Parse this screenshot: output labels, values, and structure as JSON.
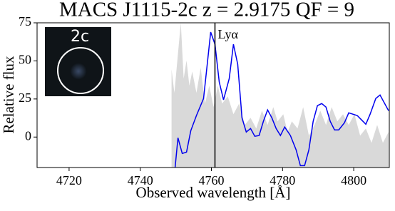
{
  "chart_data": {
    "type": "line",
    "title": "MACS J1115-2c z = 2.9175 QF = 9",
    "xlabel": "Observed wavelength [Å]",
    "ylabel": "Relative flux",
    "xlim": [
      4711,
      4810
    ],
    "ylim": [
      -20,
      75
    ],
    "xticks": [
      4720,
      4740,
      4760,
      4780,
      4800
    ],
    "yticks": [
      0,
      25,
      50,
      75
    ],
    "inset_label": "2c",
    "annotation": {
      "text": "Lyα",
      "x": 4761,
      "color": "#000000"
    },
    "series": [
      {
        "color": "#d9d9d9",
        "fill": true,
        "x": [
          4748.8,
          4749.6,
          4750.6,
          4751.4,
          4752.2,
          4753,
          4753.8,
          4754.6,
          4755.8,
          4757,
          4758.2,
          4759.4,
          4760.6,
          4761.8,
          4763,
          4764.6,
          4766.2,
          4767.8,
          4769.4,
          4771,
          4772.6,
          4774.2,
          4775.8,
          4777.4,
          4778.6,
          4780.2,
          4781.4,
          4782.6,
          4784.2,
          4785.8,
          4787.4,
          4789,
          4790.6,
          4792.2,
          4793.8,
          4795.4,
          4797,
          4798.6,
          4800.2,
          4801.8,
          4803.4,
          4805,
          4806.6,
          4808.2,
          4809.8
        ],
        "values": [
          44.5,
          29,
          54.8,
          75,
          38.4,
          50.2,
          33.7,
          43.1,
          29,
          45.5,
          22,
          33.7,
          19.7,
          33.7,
          22,
          26.7,
          15,
          22,
          8,
          12.6,
          5.6,
          17.3,
          8,
          19.7,
          10.3,
          15,
          3.3,
          10.3,
          5.6,
          19.7,
          0.9,
          8,
          17.3,
          8,
          19.7,
          10.3,
          15,
          8,
          15,
          0.9,
          5.6,
          -3.8,
          8,
          -3.8,
          3.3
        ]
      },
      {
        "color": "#0000ee",
        "fill": false,
        "x": [
          4749.8,
          4750.6,
          4751.8,
          4753,
          4754.2,
          4755.8,
          4757.8,
          4759.8,
          4761,
          4762.2,
          4763.4,
          4765,
          4766.2,
          4767.4,
          4768.6,
          4769.8,
          4771,
          4772.2,
          4773.4,
          4774.6,
          4775.8,
          4777,
          4778.2,
          4779.4,
          4780.6,
          4782.2,
          4783.8,
          4785,
          4786.2,
          4787.4,
          4788.6,
          4789.8,
          4791,
          4792.2,
          4793.4,
          4794.6,
          4795.8,
          4797.4,
          4798.6,
          4801,
          4803.4,
          4804.6,
          4806.2,
          4807.4,
          4809.8
        ],
        "values": [
          -20,
          -0.5,
          -10.8,
          -9.9,
          4.2,
          14.1,
          25.3,
          68.9,
          60.9,
          36.1,
          24.4,
          38.4,
          60.9,
          47.8,
          12.6,
          3.3,
          5.6,
          0.5,
          1,
          10.3,
          17.8,
          12.6,
          5.6,
          1,
          6.6,
          1,
          -8.4,
          -18.8,
          -18.8,
          -8.4,
          10.3,
          20.6,
          22,
          19.7,
          10.3,
          4.7,
          4.7,
          9.4,
          15.9,
          14.1,
          8.4,
          15,
          25.3,
          27.6,
          17.3
        ]
      }
    ]
  }
}
